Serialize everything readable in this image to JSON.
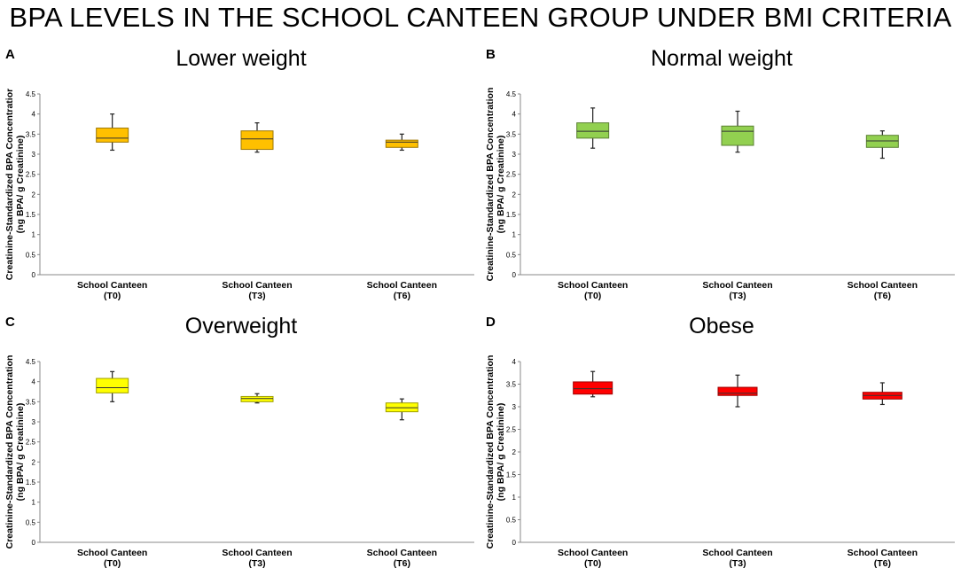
{
  "figure_title": "BPA LEVELS IN THE SCHOOL CANTEEN GROUP UNDER BMI CRITERIA",
  "chart_data": [
    {
      "type": "box",
      "panel": "A",
      "title": "Lower weight",
      "ylabel_line1": "Creatinine-Standardized BPA Concentratior",
      "ylabel_line2": "(ng BPA/ g Creatinine)",
      "ylim": [
        0,
        4.5
      ],
      "yticks": [
        "0",
        "0.5",
        "1",
        "1.5",
        "2",
        "2.5",
        "3",
        "3.5",
        "4",
        "4.5"
      ],
      "categories": [
        [
          "School Canteen",
          "(T0)"
        ],
        [
          "School Canteen",
          "(T3)"
        ],
        [
          "School Canteen",
          "(T6)"
        ]
      ],
      "color": "#FFC000",
      "boxes": [
        {
          "min": 3.1,
          "q1": 3.3,
          "median": 3.4,
          "q3": 3.65,
          "max": 4.0
        },
        {
          "min": 3.05,
          "q1": 3.12,
          "median": 3.38,
          "q3": 3.58,
          "max": 3.78
        },
        {
          "min": 3.1,
          "q1": 3.17,
          "median": 3.3,
          "q3": 3.35,
          "max": 3.5
        }
      ]
    },
    {
      "type": "box",
      "panel": "B",
      "title": "Normal weight",
      "ylabel_line1": "Creatinine-Standardized BPA Concentration",
      "ylabel_line2": "(ng BPA/ g Creatinine)",
      "ylim": [
        0,
        4.5
      ],
      "yticks": [
        "0",
        "0.5",
        "1",
        "1.5",
        "2",
        "2.5",
        "3",
        "3.5",
        "4",
        "4.5"
      ],
      "categories": [
        [
          "School Canteen",
          "(T0)"
        ],
        [
          "School Canteen",
          "(T3)"
        ],
        [
          "School Canteen",
          "(T6)"
        ]
      ],
      "color": "#92D050",
      "boxes": [
        {
          "min": 3.15,
          "q1": 3.4,
          "median": 3.57,
          "q3": 3.78,
          "max": 4.15
        },
        {
          "min": 3.05,
          "q1": 3.22,
          "median": 3.57,
          "q3": 3.7,
          "max": 4.07
        },
        {
          "min": 2.9,
          "q1": 3.17,
          "median": 3.33,
          "q3": 3.47,
          "max": 3.58
        }
      ]
    },
    {
      "type": "box",
      "panel": "C",
      "title": "Overweight",
      "ylabel_line1": "Creatinine-Standardized BPA Concentration",
      "ylabel_line2": "(ng BPA/ g Creatinine)",
      "ylim": [
        0,
        4.5
      ],
      "yticks": [
        "0",
        "0.5",
        "1",
        "1.5",
        "2",
        "2.5",
        "3",
        "3.5",
        "4",
        "4.5"
      ],
      "categories": [
        [
          "School Canteen",
          "(T0)"
        ],
        [
          "School Canteen",
          "(T3)"
        ],
        [
          "School Canteen",
          "(T6)"
        ]
      ],
      "color": "#FFFF00",
      "boxes": [
        {
          "min": 3.5,
          "q1": 3.72,
          "median": 3.85,
          "q3": 4.08,
          "max": 4.25
        },
        {
          "min": 3.47,
          "q1": 3.5,
          "median": 3.58,
          "q3": 3.63,
          "max": 3.7
        },
        {
          "min": 3.05,
          "q1": 3.25,
          "median": 3.35,
          "q3": 3.47,
          "max": 3.57
        }
      ]
    },
    {
      "type": "box",
      "panel": "D",
      "title": "Obese",
      "ylabel_line1": "Creatinine-Standardized BPA Concentration",
      "ylabel_line2": "(ng BPA/ g Creatinine)",
      "ylim": [
        0,
        4
      ],
      "yticks": [
        "0",
        "0.5",
        "1",
        "1.5",
        "2",
        "2.5",
        "3",
        "3.5",
        "4"
      ],
      "categories": [
        [
          "School Canteen",
          "(T0)"
        ],
        [
          "School Canteen",
          "(T3)"
        ],
        [
          "School Canteen",
          "(T6)"
        ]
      ],
      "color": "#FF0000",
      "boxes": [
        {
          "min": 3.22,
          "q1": 3.28,
          "median": 3.4,
          "q3": 3.55,
          "max": 3.78
        },
        {
          "min": 3.0,
          "q1": 3.25,
          "median": 3.3,
          "q3": 3.43,
          "max": 3.7
        },
        {
          "min": 3.05,
          "q1": 3.17,
          "median": 3.25,
          "q3": 3.32,
          "max": 3.53
        }
      ]
    }
  ]
}
